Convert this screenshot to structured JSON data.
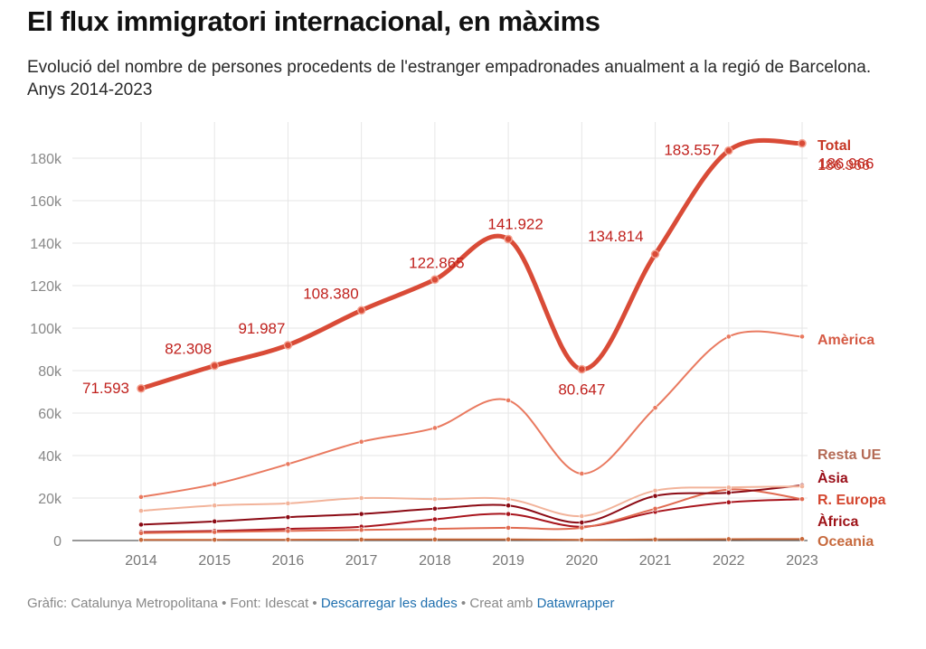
{
  "header": {
    "title": "El flux immigratori internacional, en màxims",
    "subtitle": "Evolució del nombre de persones procedents de l'estranger empadronades anualment a la regió de Barcelona. Anys 2014-2023"
  },
  "footer": {
    "grafic": "Gràfic: Catalunya Metropolitana",
    "sep1": " • ",
    "font": "Font: Idescat",
    "sep2": " • ",
    "download_link": "Descarregar les dades",
    "sep3": " • ",
    "creat": "Creat amb ",
    "datawrapper_link": "Datawrapper"
  },
  "chart_data": {
    "type": "line",
    "x": [
      "2014",
      "2015",
      "2016",
      "2017",
      "2018",
      "2019",
      "2020",
      "2021",
      "2022",
      "2023"
    ],
    "y_ticks": [
      0,
      20000,
      40000,
      60000,
      80000,
      100000,
      120000,
      140000,
      160000,
      180000
    ],
    "y_tick_labels": [
      "0",
      "20k",
      "40k",
      "60k",
      "80k",
      "100k",
      "120k",
      "140k",
      "160k",
      "180k"
    ],
    "ylim": [
      0,
      190000
    ],
    "grid": true,
    "legend": "direct labels at right end of lines",
    "series": [
      {
        "name": "Oceania",
        "color": "#c8683a",
        "width": 2,
        "values": [
          300,
          350,
          400,
          450,
          500,
          550,
          350,
          500,
          650,
          700
        ]
      },
      {
        "name": "Àfrica",
        "color": "#a8151d",
        "width": 2,
        "values": [
          4000,
          4500,
          5500,
          6500,
          10000,
          12500,
          6500,
          13500,
          18000,
          19500
        ]
      },
      {
        "name": "R. Europa",
        "color": "#e06a50",
        "width": 2,
        "values": [
          3500,
          4000,
          4500,
          5000,
          5500,
          6000,
          6000,
          15000,
          24000,
          19500
        ]
      },
      {
        "name": "Àsia",
        "color": "#8b0a14",
        "width": 2,
        "values": [
          7500,
          9000,
          11000,
          12500,
          15000,
          16500,
          8500,
          21000,
          22500,
          26000
        ]
      },
      {
        "name": "Resta UE",
        "color": "#f2b39a",
        "width": 2,
        "values": [
          14000,
          16500,
          17500,
          20000,
          19500,
          19500,
          11500,
          23500,
          25000,
          25500
        ]
      },
      {
        "name": "Amèrica",
        "color": "#e97a60",
        "width": 2,
        "values": [
          20500,
          26500,
          36000,
          46500,
          53000,
          66000,
          31500,
          62500,
          96000,
          96000
        ]
      },
      {
        "name": "Total",
        "color": "#d94b37",
        "width": 5,
        "values": [
          71593,
          82308,
          91987,
          108380,
          122865,
          141922,
          80647,
          134814,
          183557,
          186966
        ],
        "value_labels": [
          "71.593",
          "82.308",
          "91.987",
          "108.380",
          "122.865",
          "141.922",
          "80.647",
          "134.814",
          "183.557",
          "186.966"
        ]
      }
    ]
  }
}
